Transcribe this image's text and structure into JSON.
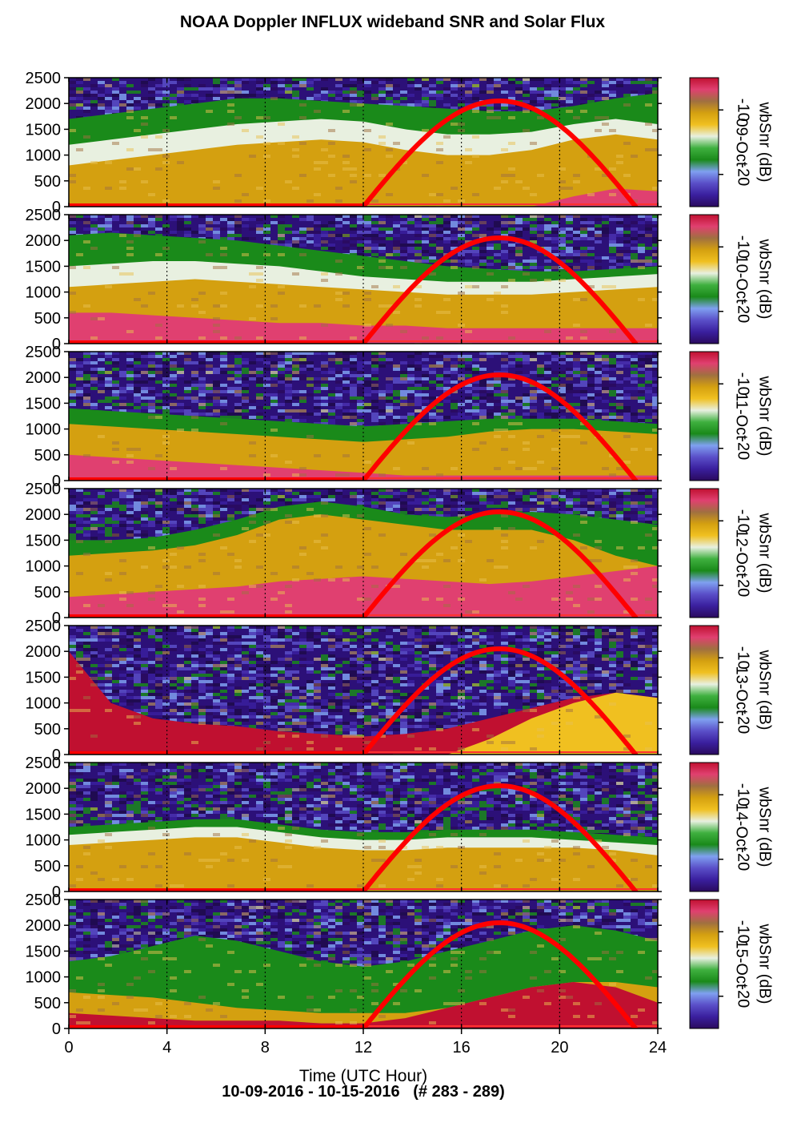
{
  "title": "NOAA Doppler INFLUX wideband SNR and Solar Flux",
  "footer": "10-09-2016 - 10-15-2016   (# 283 - 289)",
  "chart_data": {
    "type": "heatmap",
    "xlabel": "Time (UTC Hour)",
    "xlim": [
      0,
      24
    ],
    "xticks": [
      0,
      4,
      8,
      12,
      16,
      20,
      24
    ],
    "ylim": [
      0,
      2500
    ],
    "yticks": [
      0,
      500,
      1000,
      1500,
      2000,
      2500
    ],
    "colorbar": {
      "label": "wbSnr (dB)",
      "ticks": [
        -10,
        -20
      ],
      "range": [
        -25,
        -5
      ],
      "colors": [
        "#2a0a5e",
        "#3a1f9e",
        "#5a4fc8",
        "#7fa0f0",
        "#1a8a1a",
        "#3fb03f",
        "#e8f0e0",
        "#f0c020",
        "#d4a010",
        "#a07040",
        "#e04070",
        "#c01030"
      ]
    },
    "solar_flux": {
      "color": "#ff0000",
      "rise_hour": 12.0,
      "peak_hour": 17.5,
      "set_hour": 23.1,
      "peak_value": 2050
    },
    "panels": [
      {
        "date": "09-Oct",
        "layers": [
          {
            "color": "#d4a010",
            "top": [
              800,
              900,
              1000,
              1100,
              1200,
              1250,
              1300,
              1250,
              1100,
              1000,
              1000,
              1100,
              1300,
              1400,
              1300
            ]
          },
          {
            "color": "#e8f0e0",
            "top": [
              1200,
              1300,
              1400,
              1500,
              1600,
              1650,
              1700,
              1650,
              1500,
              1400,
              1400,
              1450,
              1600,
              1700,
              1600
            ]
          },
          {
            "color": "#1a8a1a",
            "top": [
              1700,
              1800,
              1900,
              2000,
              2100,
              2100,
              2050,
              2000,
              1950,
              1900,
              1850,
              1850,
              1950,
              2100,
              2200
            ]
          },
          {
            "color": "#e04070",
            "top": [
              0,
              0,
              0,
              0,
              0,
              0,
              0,
              0,
              0,
              0,
              0,
              0,
              200,
              350,
              300
            ]
          }
        ]
      },
      {
        "date": "10-Oct",
        "layers": [
          {
            "color": "#e04070",
            "top": [
              600,
              600,
              550,
              500,
              450,
              400,
              400,
              350,
              350,
              300,
              300,
              300,
              300,
              300,
              300
            ]
          },
          {
            "color": "#d4a010",
            "top": [
              1100,
              1150,
              1200,
              1250,
              1200,
              1150,
              1100,
              1050,
              1000,
              950,
              950,
              950,
              1000,
              1050,
              1100
            ]
          },
          {
            "color": "#e8f0e0",
            "top": [
              1500,
              1550,
              1600,
              1600,
              1550,
              1500,
              1400,
              1300,
              1250,
              1200,
              1200,
              1200,
              1250,
              1300,
              1350
            ]
          },
          {
            "color": "#1a8a1a",
            "top": [
              2100,
              2150,
              2100,
              2050,
              2000,
              1900,
              1800,
              1700,
              1600,
              1500,
              1450,
              1400,
              1400,
              1450,
              1500
            ]
          }
        ]
      },
      {
        "date": "11-Oct",
        "layers": [
          {
            "color": "#e04070",
            "top": [
              500,
              450,
              400,
              350,
              300,
              250,
              200,
              150,
              100,
              100,
              100,
              100,
              100,
              100,
              100
            ]
          },
          {
            "color": "#d4a010",
            "top": [
              1100,
              1050,
              1000,
              950,
              900,
              850,
              800,
              750,
              800,
              850,
              950,
              1000,
              1000,
              950,
              900
            ]
          },
          {
            "color": "#1a8a1a",
            "top": [
              1400,
              1350,
              1300,
              1250,
              1200,
              1150,
              1100,
              1050,
              1100,
              1150,
              1200,
              1200,
              1200,
              1150,
              1100
            ]
          }
        ]
      },
      {
        "date": "12-Oct",
        "layers": [
          {
            "color": "#e04070",
            "top": [
              400,
              450,
              500,
              550,
              600,
              700,
              750,
              800,
              750,
              700,
              650,
              700,
              800,
              900,
              1000
            ]
          },
          {
            "color": "#d4a010",
            "top": [
              1200,
              1250,
              1300,
              1400,
              1600,
              1900,
              2000,
              1900,
              1800,
              1700,
              1700,
              1700,
              1500,
              1200,
              1000
            ]
          },
          {
            "color": "#1a8a1a",
            "top": [
              1500,
              1500,
              1550,
              1700,
              1900,
              2150,
              2250,
              2150,
              2000,
              1950,
              2000,
              2050,
              2000,
              1900,
              1800
            ]
          }
        ]
      },
      {
        "date": "13-Oct",
        "layers": [
          {
            "color": "#c01030",
            "top": [
              2000,
              1000,
              700,
              600,
              550,
              450,
              400,
              350,
              400,
              500,
              700,
              900,
              1100,
              1200,
              1100
            ]
          },
          {
            "color": "#f0c020",
            "top": [
              0,
              0,
              0,
              0,
              0,
              0,
              0,
              0,
              0,
              0,
              300,
              700,
              1000,
              1200,
              1100
            ]
          }
        ]
      },
      {
        "date": "14-Oct",
        "layers": [
          {
            "color": "#d4a010",
            "top": [
              900,
              950,
              1000,
              1050,
              1050,
              950,
              850,
              800,
              800,
              850,
              850,
              850,
              850,
              800,
              700
            ]
          },
          {
            "color": "#e8f0e0",
            "top": [
              1100,
              1150,
              1200,
              1250,
              1250,
              1150,
              1050,
              1000,
              1000,
              1050,
              1050,
              1050,
              1000,
              950,
              900
            ]
          },
          {
            "color": "#1a8a1a",
            "top": [
              1250,
              1300,
              1350,
              1400,
              1400,
              1300,
              1200,
              1150,
              1150,
              1200,
              1200,
              1200,
              1150,
              1100,
              1050
            ]
          }
        ]
      },
      {
        "date": "15-Oct",
        "layers": [
          {
            "color": "#d4a010",
            "top": [
              700,
              650,
              600,
              500,
              400,
              350,
              300,
              300,
              300,
              400,
              600,
              800,
              900,
              900,
              800
            ]
          },
          {
            "color": "#1a8a1a",
            "top": [
              1300,
              1400,
              1600,
              1800,
              1700,
              1500,
              1300,
              1200,
              1300,
              1500,
              1700,
              1900,
              2000,
              1900,
              1700
            ]
          },
          {
            "color": "#c01030",
            "top": [
              300,
              250,
              200,
              150,
              150,
              150,
              100,
              100,
              200,
              400,
              600,
              800,
              900,
              800,
              500
            ]
          }
        ]
      }
    ]
  }
}
